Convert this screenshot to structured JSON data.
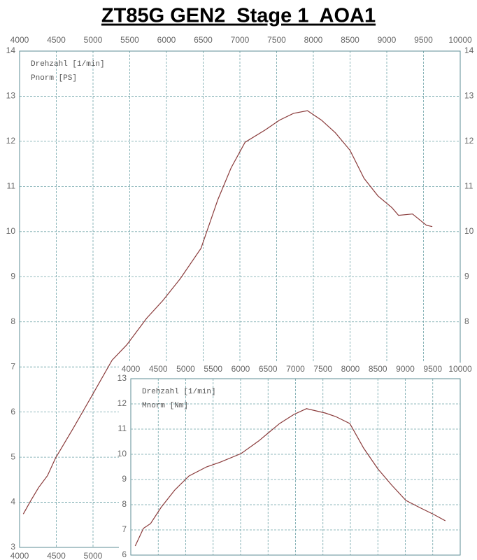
{
  "chart_data": [
    {
      "type": "line",
      "title": "ZT85G GEN2  Stage 1  AOA1",
      "x_label": "Drehzahl [1/min]",
      "x": [
        4050,
        4150,
        4260,
        4380,
        4490,
        4730,
        4960,
        5260,
        5460,
        5730,
        5950,
        6190,
        6470,
        6700,
        6880,
        7070,
        7350,
        7540,
        7730,
        7920,
        8110,
        8300,
        8500,
        8690,
        8880,
        9070,
        9160,
        9350,
        9540,
        9620
      ],
      "series": [
        {
          "name": "Pnorm [PS]",
          "color": "#8a3b3b",
          "values": [
            3.74,
            4.03,
            4.33,
            4.59,
            4.98,
            5.64,
            6.29,
            7.15,
            7.49,
            8.08,
            8.47,
            8.96,
            9.63,
            10.71,
            11.41,
            11.98,
            12.26,
            12.47,
            12.62,
            12.68,
            12.47,
            12.19,
            11.8,
            11.18,
            10.79,
            10.53,
            10.36,
            10.39,
            10.14,
            10.11
          ]
        }
      ],
      "xlim": [
        4000,
        10000
      ],
      "xticks": [
        4000,
        4500,
        5000,
        5500,
        6000,
        6500,
        7000,
        7500,
        8000,
        8500,
        9000,
        9500,
        10000
      ],
      "ylim": [
        3,
        14
      ],
      "yticks": [
        3,
        4,
        5,
        6,
        7,
        8,
        9,
        10,
        11,
        12,
        13,
        14
      ],
      "grid": true
    },
    {
      "type": "line",
      "x_label": "Drehzahl [1/min]",
      "x": [
        4080,
        4230,
        4360,
        4550,
        4800,
        5060,
        5380,
        5630,
        6010,
        6330,
        6710,
        6970,
        7200,
        7540,
        7730,
        7990,
        8240,
        8500,
        8750,
        9010,
        9260,
        9520,
        9730
      ],
      "series": [
        {
          "name": "Mnorm [Nm]",
          "color": "#8a3b3b",
          "values": [
            6.36,
            7.06,
            7.25,
            7.89,
            8.58,
            9.14,
            9.5,
            9.69,
            10.03,
            10.53,
            11.22,
            11.58,
            11.81,
            11.64,
            11.5,
            11.22,
            10.25,
            9.42,
            8.78,
            8.17,
            7.89,
            7.61,
            7.36
          ]
        }
      ],
      "xlim": [
        4000,
        10000
      ],
      "xticks": [
        4000,
        4500,
        5000,
        5500,
        6000,
        6500,
        7000,
        7500,
        8000,
        8500,
        9000,
        9500,
        10000
      ],
      "ylim": [
        6,
        13
      ],
      "yticks": [
        6,
        7,
        8,
        9,
        10,
        11,
        12,
        13
      ],
      "grid": true
    }
  ]
}
